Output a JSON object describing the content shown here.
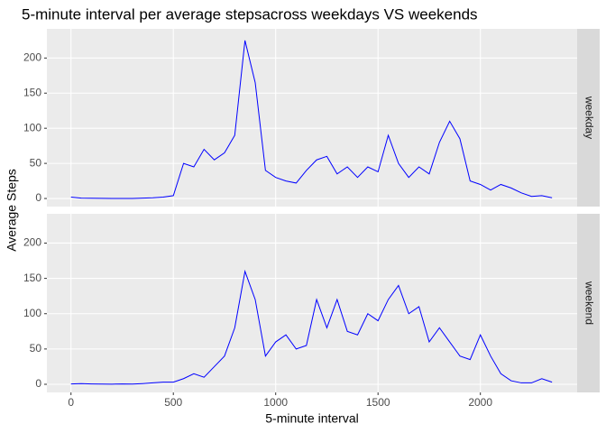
{
  "chart_data": {
    "type": "line",
    "title": "5-minute interval per average stepsacross weekdays VS weekends",
    "x_label": "5-minute interval",
    "y_label": "Average Steps",
    "x": [
      0,
      50,
      100,
      150,
      200,
      250,
      300,
      350,
      400,
      450,
      500,
      550,
      600,
      650,
      700,
      750,
      800,
      850,
      900,
      950,
      1000,
      1050,
      1100,
      1150,
      1200,
      1250,
      1300,
      1350,
      1400,
      1450,
      1500,
      1550,
      1600,
      1650,
      1700,
      1750,
      1800,
      1850,
      1900,
      1950,
      2000,
      2050,
      2100,
      2150,
      2200,
      2250,
      2300,
      2350
    ],
    "series": [
      {
        "name": "weekday",
        "color": "#0000ff",
        "values": [
          2,
          0.5,
          0.3,
          0.2,
          0.1,
          0.1,
          0.1,
          0.5,
          1,
          2,
          4,
          50,
          45,
          70,
          55,
          65,
          90,
          225,
          165,
          40,
          30,
          25,
          22,
          40,
          55,
          60,
          35,
          45,
          30,
          45,
          38,
          90,
          50,
          30,
          45,
          35,
          80,
          110,
          85,
          25,
          20,
          12,
          20,
          15,
          8,
          3,
          4,
          1
        ]
      },
      {
        "name": "weekend",
        "color": "#0000ff",
        "values": [
          0.5,
          1,
          0.5,
          0.3,
          0.2,
          0.5,
          0.3,
          1,
          2,
          3,
          3,
          8,
          15,
          10,
          25,
          40,
          80,
          160,
          120,
          40,
          60,
          70,
          50,
          55,
          120,
          80,
          120,
          75,
          70,
          100,
          90,
          120,
          140,
          100,
          110,
          60,
          80,
          60,
          40,
          35,
          70,
          40,
          15,
          5,
          2,
          2,
          8,
          3
        ]
      }
    ],
    "xlim": [
      -117.75,
      2472.75
    ],
    "xticks": [
      0,
      500,
      1000,
      1500,
      2000
    ],
    "ylim": [
      -11.5,
      241.5
    ],
    "yticks": [
      0,
      50,
      100,
      150,
      200
    ],
    "grid": true
  }
}
